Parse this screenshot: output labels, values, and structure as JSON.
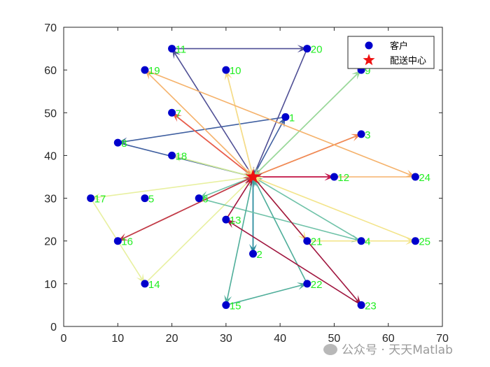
{
  "chart_data": {
    "type": "scatter",
    "xlim": [
      0,
      70
    ],
    "ylim": [
      0,
      70
    ],
    "xticks": [
      0,
      10,
      20,
      30,
      40,
      50,
      60,
      70
    ],
    "yticks": [
      0,
      10,
      20,
      30,
      40,
      50,
      60,
      70
    ],
    "grid": false,
    "legend_position": "top-right",
    "legend": [
      {
        "label": "客户",
        "marker": "circle",
        "color": "#0000cc"
      },
      {
        "label": "配送中心",
        "marker": "star",
        "color": "#ee1111"
      }
    ],
    "depot": {
      "x": 35,
      "y": 35
    },
    "customers": [
      {
        "id": "1",
        "x": 41,
        "y": 49
      },
      {
        "id": "2",
        "x": 35,
        "y": 17
      },
      {
        "id": "3",
        "x": 55,
        "y": 45
      },
      {
        "id": "4",
        "x": 55,
        "y": 20
      },
      {
        "id": "5",
        "x": 15,
        "y": 30
      },
      {
        "id": "6",
        "x": 25,
        "y": 30
      },
      {
        "id": "7",
        "x": 20,
        "y": 50
      },
      {
        "id": "8",
        "x": 10,
        "y": 43
      },
      {
        "id": "9",
        "x": 55,
        "y": 60
      },
      {
        "id": "10",
        "x": 30,
        "y": 60
      },
      {
        "id": "11",
        "x": 20,
        "y": 65
      },
      {
        "id": "12",
        "x": 50,
        "y": 35
      },
      {
        "id": "13",
        "x": 30,
        "y": 25
      },
      {
        "id": "14",
        "x": 15,
        "y": 10
      },
      {
        "id": "15",
        "x": 30,
        "y": 5
      },
      {
        "id": "16",
        "x": 10,
        "y": 20
      },
      {
        "id": "17",
        "x": 5,
        "y": 30
      },
      {
        "id": "18",
        "x": 20,
        "y": 40
      },
      {
        "id": "19",
        "x": 15,
        "y": 60
      },
      {
        "id": "20",
        "x": 45,
        "y": 65
      },
      {
        "id": "21",
        "x": 45,
        "y": 20
      },
      {
        "id": "22",
        "x": 45,
        "y": 10
      },
      {
        "id": "23",
        "x": 55,
        "y": 5
      },
      {
        "id": "24",
        "x": 65,
        "y": 35
      },
      {
        "id": "25",
        "x": 65,
        "y": 20
      }
    ],
    "routes": [
      {
        "color": "#3f5fa0",
        "stops": [
          "1",
          "8"
        ]
      },
      {
        "color": "#2f8fa0",
        "stops": [
          "2"
        ]
      },
      {
        "color": "#4f4f95",
        "stops": [
          "11",
          "20"
        ]
      },
      {
        "color": "#f08a55",
        "stops": [
          "3"
        ]
      },
      {
        "color": "#9ad89a",
        "stops": [
          "9"
        ]
      },
      {
        "color": "#e85d4b",
        "stops": [
          "7"
        ]
      },
      {
        "color": "#f5dc8a",
        "stops": [
          "10"
        ]
      },
      {
        "color": "#f5b26b",
        "stops": [
          "19",
          "24"
        ]
      },
      {
        "color": "#c2184f",
        "stops": [
          "12"
        ]
      },
      {
        "color": "#cfe89a",
        "stops": [
          "18"
        ]
      },
      {
        "color": "#e8f0a0",
        "stops": [
          "17",
          "14"
        ]
      },
      {
        "color": "#6fc2a8",
        "stops": [
          "6",
          "4"
        ]
      },
      {
        "color": "#c23c48",
        "stops": [
          "16"
        ]
      },
      {
        "color": "#4fae9a",
        "stops": [
          "15",
          "22"
        ]
      },
      {
        "color": "#f3e48a",
        "stops": [
          "21",
          "25"
        ]
      },
      {
        "color": "#a0163f",
        "stops": [
          "23",
          "13"
        ]
      }
    ]
  },
  "watermark": "公众号 · 天天Matlab"
}
